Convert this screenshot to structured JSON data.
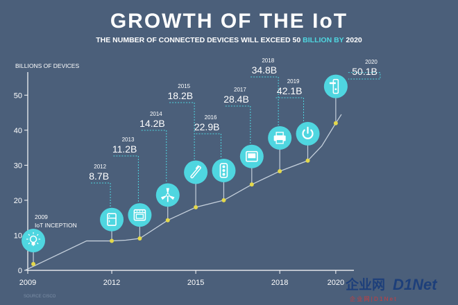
{
  "header": {
    "title": "GROWTH OF THE IoT",
    "subtitle_pre": "THE NUMBER OF CONNECTED DEVICES WILL EXCEED 50 ",
    "subtitle_accent": "BILLION BY",
    "subtitle_post": " 2020"
  },
  "ylabel": "BILLIONS OF DEVICES",
  "source": "SOURCE CISCO",
  "watermark": {
    "part1": "企业网",
    "part2": "D1Net",
    "sub": "企 业 网 | D 1 N e t"
  },
  "colors": {
    "background": "#4b5f7a",
    "accent": "#4fd6e0",
    "line": "#c5d0dc",
    "dot": "#e3d84b",
    "leader": "#4fd6e0"
  },
  "chart_data": {
    "type": "line",
    "ylabel": "BILLIONS OF DEVICES",
    "ylim": [
      0,
      55
    ],
    "xlim": [
      2009,
      2020.4
    ],
    "yticks": [
      0,
      10,
      20,
      30,
      40,
      50
    ],
    "xticks": [
      2009,
      2012,
      2015,
      2018,
      2020
    ],
    "grid": false,
    "line": [
      {
        "x": 2008.9,
        "y": 0
      },
      {
        "x": 2011.1,
        "y": 8.4
      },
      {
        "x": 2012.0,
        "y": 8.4
      },
      {
        "x": 2012.5,
        "y": 8.6
      },
      {
        "x": 2013.0,
        "y": 9.1
      },
      {
        "x": 2014.0,
        "y": 14.3
      },
      {
        "x": 2015.0,
        "y": 18.0
      },
      {
        "x": 2016.0,
        "y": 20.0
      },
      {
        "x": 2017.0,
        "y": 24.5
      },
      {
        "x": 2018.0,
        "y": 28.3
      },
      {
        "x": 2019.0,
        "y": 31.3
      },
      {
        "x": 2019.5,
        "y": 35.5
      },
      {
        "x": 2020.0,
        "y": 42.0
      },
      {
        "x": 2020.2,
        "y": 44.5
      }
    ],
    "milestones": [
      {
        "year": "2009",
        "label": "IoT INCEPTION",
        "value": "",
        "x": 2009.2,
        "y": 1.8,
        "icon": "lightbulb-icon",
        "icon_y": 8.5
      },
      {
        "year": "2012",
        "label": "",
        "value": "8.7B",
        "x": 2012.0,
        "y": 8.4,
        "icon": "fridge-icon",
        "icon_y": 14.5
      },
      {
        "year": "2013",
        "label": "",
        "value": "11.2B",
        "x": 2013.0,
        "y": 9.1,
        "icon": "oven-icon",
        "icon_y": 15.8
      },
      {
        "year": "2014",
        "label": "",
        "value": "14.2B",
        "x": 2014.0,
        "y": 14.3,
        "icon": "wind-turbine-icon",
        "icon_y": 21.5
      },
      {
        "year": "2015",
        "label": "",
        "value": "18.2B",
        "x": 2015.0,
        "y": 18.0,
        "icon": "toothbrush-icon",
        "icon_y": 28.0
      },
      {
        "year": "2016",
        "label": "",
        "value": "22.9B",
        "x": 2016.0,
        "y": 20.0,
        "icon": "traffic-light-icon",
        "icon_y": 28.5
      },
      {
        "year": "2017",
        "label": "",
        "value": "28.4B",
        "x": 2017.0,
        "y": 24.5,
        "icon": "tablet-icon",
        "icon_y": 32.5
      },
      {
        "year": "2018",
        "label": "",
        "value": "34.8B",
        "x": 2018.0,
        "y": 28.3,
        "icon": "printer-icon",
        "icon_y": 37.8
      },
      {
        "year": "2019",
        "label": "",
        "value": "42.1B",
        "x": 2019.0,
        "y": 31.3,
        "icon": "power-icon",
        "icon_y": 39.0
      },
      {
        "year": "2020",
        "label": "",
        "value": "50.1B",
        "x": 2020.0,
        "y": 42.0,
        "icon": "door-lock-icon",
        "icon_y": 52.5
      }
    ]
  }
}
